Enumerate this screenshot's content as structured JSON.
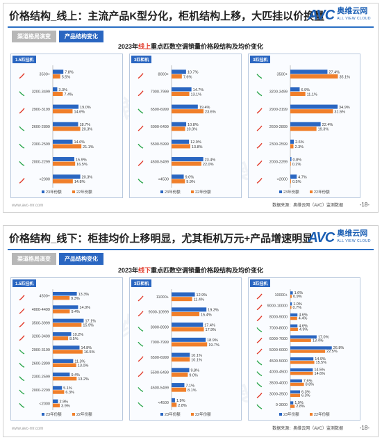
{
  "slides": [
    {
      "title": "价格结构_线上：主流产品K型分化，柜机结构上移，大匹挂以价换量",
      "tabs": [
        "渠道格局演变",
        "产品结构变化"
      ],
      "subtitle_pre": "2023年",
      "subtitle_hl": "线上",
      "subtitle_post": "重点匹数空调销量价格段结构及均价变化",
      "footer_left": "www.avc-mr.com",
      "source": "数据来源：奥维云网（AVC）监测数据",
      "page": "-18-"
    },
    {
      "title": "价格结构_线下：柜挂均价上移明显，尤其柜机万元+产品增速明显",
      "tabs": [
        "渠道格局演变",
        "产品结构变化"
      ],
      "subtitle_pre": "2023年",
      "subtitle_hl": "线下",
      "subtitle_post": "重点匹数空调销量价格段结构及均价变化",
      "footer_left": "www.avc-mr.com",
      "source": "数据来源：奥维云网（AVC）监测数据",
      "page": "-18-"
    }
  ],
  "logo": {
    "text": "AVC",
    "cn": "奥维云网",
    "en": "ALL VIEW CLOUD"
  },
  "watermark": "奥维云网",
  "colors": {
    "series23": "#2a66c1",
    "series22": "#f07f2a",
    "arrow_up": "#e23a2a",
    "arrow_down": "#2fa84f"
  },
  "chart_data": [
    {
      "type": "bar",
      "panel": "1.5匹挂机",
      "categories": [
        "3500+",
        "3200-3499",
        "2900-3199",
        "2600-2899",
        "2300-2599",
        "2000-2299",
        "<2000"
      ],
      "series": [
        {
          "name": "23年份额",
          "values": [
            7.8,
            3.3,
            19.0,
            18.7,
            14.6,
            15.9,
            20.3
          ]
        },
        {
          "name": "22年份额",
          "values": [
            5.5,
            7.4,
            14.6,
            20.3,
            21.1,
            16.5,
            14.8
          ]
        }
      ],
      "arrows": [
        "up",
        "down",
        "up",
        "down",
        "down",
        "down",
        "up"
      ],
      "xlim": [
        0,
        40
      ]
    },
    {
      "type": "bar",
      "panel": "3匹柜机",
      "categories": [
        "8000+",
        "7000-7999",
        "6500-6999",
        "6000-6499",
        "5500-5999",
        "4500-5499",
        "<4500"
      ],
      "series": [
        {
          "name": "23年份额",
          "values": [
            10.7,
            14.7,
            19.4,
            10.8,
            12.9,
            23.4,
            9.0
          ]
        },
        {
          "name": "22年份额",
          "values": [
            7.6,
            13.1,
            23.6,
            10.0,
            13.8,
            22.0,
            9.9
          ]
        }
      ],
      "arrows": [
        "up",
        "up",
        "down",
        "up",
        "down",
        "up",
        "down"
      ],
      "xlim": [
        0,
        40
      ]
    },
    {
      "type": "bar",
      "panel": "3匹挂机",
      "categories": [
        "3500+",
        "3200-3499",
        "2900-3199",
        "2600-2899",
        "2300-2599",
        "2000-2299",
        "<2000"
      ],
      "series": [
        {
          "name": "23年份额",
          "values": [
            27.4,
            6.9,
            34.9,
            22.4,
            2.6,
            0.8,
            4.7
          ]
        },
        {
          "name": "22年份额",
          "values": [
            35.1,
            11.1,
            31.5,
            19.3,
            2.3,
            0.2,
            0.5
          ]
        }
      ],
      "arrows": [
        "down",
        "down",
        "up",
        "up",
        "up",
        "up",
        "up"
      ],
      "xlim": [
        0,
        40
      ]
    },
    {
      "type": "bar",
      "panel": "1.5匹挂机",
      "categories": [
        "4500+",
        "4000-4499",
        "3500-3999",
        "3200-3499",
        "2900-3199",
        "2600-2899",
        "2300-2599",
        "2000-2299",
        "<2000"
      ],
      "series": [
        {
          "name": "23年份额",
          "values": [
            13.3,
            14.0,
            17.1,
            10.2,
            14.8,
            11.3,
            9.4,
            5.1,
            2.9
          ]
        },
        {
          "name": "22年份额",
          "values": [
            9.3,
            9.4,
            15.9,
            8.5,
            16.5,
            13.0,
            13.2,
            6.3,
            3.9
          ]
        }
      ],
      "arrows": [
        "up",
        "up",
        "up",
        "up",
        "down",
        "down",
        "down",
        "down",
        "down"
      ],
      "xlim": [
        0,
        30
      ]
    },
    {
      "type": "bar",
      "panel": "3匹柜机",
      "categories": [
        "11000+",
        "9000-10999",
        "8000-8999",
        "7000-7999",
        "6500-6999",
        "5500-6499",
        "4500-5499",
        "<4500"
      ],
      "series": [
        {
          "name": "23年份额",
          "values": [
            12.9,
            19.3,
            17.4,
            18.9,
            10.1,
            9.8,
            7.1,
            1.9
          ]
        },
        {
          "name": "22年份额",
          "values": [
            11.4,
            15.4,
            17.9,
            19.7,
            10.1,
            9.0,
            8.1,
            2.8
          ]
        }
      ],
      "arrows": [
        "up",
        "up",
        "down",
        "down",
        "up",
        "up",
        "down",
        "down"
      ],
      "xlim": [
        0,
        30
      ]
    },
    {
      "type": "bar",
      "panel": "3匹挂机",
      "categories": [
        "10000+",
        "9000-10000",
        "8000-9000",
        "7000-8000",
        "6000-7000",
        "5000-6000",
        "4500-5000",
        "4000-4500",
        "3500-4000",
        "3000-3500",
        "0-3000"
      ],
      "series": [
        {
          "name": "23年份额",
          "values": [
            1.6,
            1.0,
            4.6,
            4.6,
            17.0,
            26.8,
            14.9,
            14.5,
            7.6,
            6.3,
            1.9
          ]
        },
        {
          "name": "22年份额",
          "values": [
            0.9,
            0.7,
            4.4,
            4.9,
            13.4,
            22.5,
            15.5,
            14.6,
            8.8,
            6.3,
            2.8
          ]
        }
      ],
      "arrows": [
        "up",
        "up",
        "up",
        "down",
        "up",
        "up",
        "down",
        "down",
        "down",
        "up",
        "down"
      ],
      "xlim": [
        0,
        35
      ]
    }
  ]
}
